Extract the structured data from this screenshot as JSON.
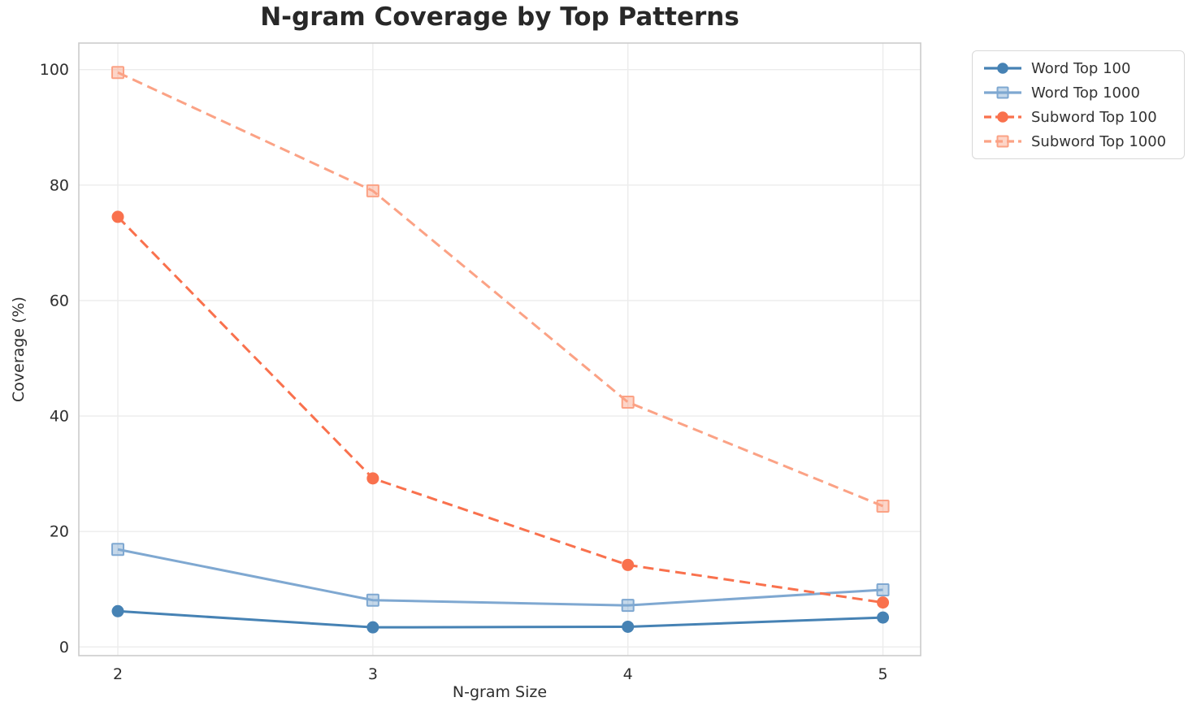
{
  "figure": {
    "background": "#ffffff"
  },
  "chart_data": {
    "type": "line",
    "title": "N-gram Coverage by Top Patterns",
    "xlabel": "N-gram Size",
    "ylabel": "Coverage (%)",
    "x": [
      2,
      3,
      4,
      5
    ],
    "xticks": [
      "2",
      "3",
      "4",
      "5"
    ],
    "yticks": [
      0,
      20,
      40,
      60,
      80,
      100
    ],
    "xlim": [
      1.847,
      5.148
    ],
    "ylim": [
      -1.5,
      104.6
    ],
    "grid": true,
    "grid_color": "#ececec",
    "spine_color": "#cccccc",
    "tick_color": "#2e2e2e",
    "title_color": "#282828",
    "legend_position": "outside-upper-right",
    "series": [
      {
        "name": "Word Top 100",
        "color": "#4682B4",
        "line_style": "solid",
        "marker": "circle",
        "values": [
          6.2,
          3.4,
          3.5,
          5.1
        ]
      },
      {
        "name": "Word Top 1000",
        "color": "#7FA8D1",
        "line_style": "solid",
        "marker": "square",
        "values": [
          16.9,
          8.1,
          7.2,
          9.9
        ]
      },
      {
        "name": "Subword Top 100",
        "color": "#F9714D",
        "line_style": "dashed",
        "marker": "circle",
        "values": [
          74.5,
          29.2,
          14.2,
          7.7
        ]
      },
      {
        "name": "Subword Top 1000",
        "color": "#FBA285",
        "line_style": "dashed",
        "marker": "square",
        "values": [
          99.5,
          79.0,
          42.4,
          24.4
        ]
      }
    ]
  }
}
